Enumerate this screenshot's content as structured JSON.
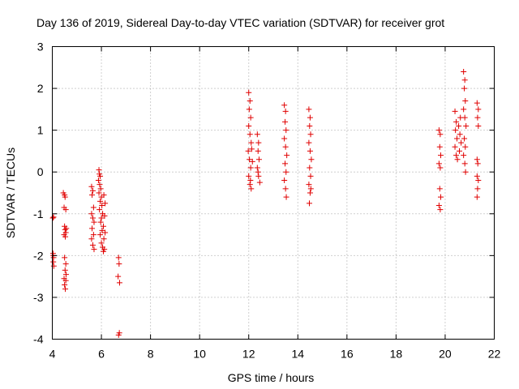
{
  "chart_data": {
    "type": "scatter",
    "title": "Day 136 of 2019, Sidereal Day-to-day VTEC variation (SDTVAR) for receiver grot",
    "xlabel": "GPS time / hours",
    "ylabel": "SDTVAR / TECUs",
    "xlim": [
      4,
      22
    ],
    "ylim": [
      -4,
      3
    ],
    "xticks": [
      4,
      6,
      8,
      10,
      12,
      14,
      16,
      18,
      20,
      22
    ],
    "yticks": [
      -4,
      -3,
      -2,
      -1,
      0,
      1,
      2,
      3
    ],
    "xtick_labels": [
      "4",
      "6",
      "8",
      "10",
      "12",
      "14",
      "16",
      "18",
      "20",
      "22"
    ],
    "ytick_labels": [
      "-4",
      "-3",
      "-2",
      "-1",
      "0",
      "1",
      "2",
      "3"
    ],
    "grid": true,
    "marker": "+",
    "marker_color": "#e00000",
    "series": [
      {
        "name": "SDTVAR",
        "points": [
          [
            4.02,
            -1.1
          ],
          [
            4.05,
            -1.08
          ],
          [
            4.03,
            -1.95
          ],
          [
            4.05,
            -2.05
          ],
          [
            4.04,
            -2.15
          ],
          [
            4.06,
            -2.25
          ],
          [
            4.04,
            -2.0
          ],
          [
            4.45,
            -0.5
          ],
          [
            4.5,
            -0.55
          ],
          [
            4.52,
            -0.6
          ],
          [
            4.48,
            -0.85
          ],
          [
            4.55,
            -0.9
          ],
          [
            4.5,
            -1.3
          ],
          [
            4.52,
            -1.38
          ],
          [
            4.55,
            -1.45
          ],
          [
            4.48,
            -1.5
          ],
          [
            4.53,
            -1.55
          ],
          [
            4.57,
            -1.35
          ],
          [
            4.5,
            -2.05
          ],
          [
            4.55,
            -2.2
          ],
          [
            4.52,
            -2.35
          ],
          [
            4.48,
            -2.55
          ],
          [
            4.55,
            -2.6
          ],
          [
            4.5,
            -2.7
          ],
          [
            4.53,
            -2.8
          ],
          [
            4.56,
            -2.45
          ],
          [
            5.6,
            -0.35
          ],
          [
            5.65,
            -0.45
          ],
          [
            5.62,
            -0.55
          ],
          [
            5.68,
            -0.85
          ],
          [
            5.6,
            -1.0
          ],
          [
            5.65,
            -1.1
          ],
          [
            5.7,
            -1.2
          ],
          [
            5.62,
            -1.35
          ],
          [
            5.68,
            -1.5
          ],
          [
            5.6,
            -1.6
          ],
          [
            5.65,
            -1.75
          ],
          [
            5.7,
            -1.85
          ],
          [
            5.9,
            0.05
          ],
          [
            5.92,
            -0.05
          ],
          [
            5.95,
            -0.1
          ],
          [
            5.88,
            -0.2
          ],
          [
            5.93,
            -0.3
          ],
          [
            5.97,
            -0.4
          ],
          [
            5.9,
            -0.5
          ],
          [
            6.0,
            -0.6
          ],
          [
            5.95,
            -0.7
          ],
          [
            6.02,
            -0.8
          ],
          [
            5.92,
            -0.9
          ],
          [
            6.05,
            -1.0
          ],
          [
            6.0,
            -1.1
          ],
          [
            5.97,
            -1.2
          ],
          [
            6.08,
            -1.3
          ],
          [
            6.03,
            -1.4
          ],
          [
            5.95,
            -1.5
          ],
          [
            6.1,
            -1.6
          ],
          [
            6.0,
            -1.7
          ],
          [
            6.05,
            -1.8
          ],
          [
            6.12,
            -1.85
          ],
          [
            6.08,
            -1.9
          ],
          [
            6.15,
            -1.45
          ],
          [
            6.13,
            -1.05
          ],
          [
            6.1,
            -0.55
          ],
          [
            6.15,
            -0.75
          ],
          [
            6.7,
            -2.05
          ],
          [
            6.72,
            -2.2
          ],
          [
            6.68,
            -2.5
          ],
          [
            6.74,
            -2.65
          ],
          [
            6.7,
            -3.9
          ],
          [
            6.73,
            -3.85
          ],
          [
            12.0,
            1.9
          ],
          [
            12.05,
            1.7
          ],
          [
            12.02,
            1.5
          ],
          [
            12.08,
            1.3
          ],
          [
            12.0,
            1.1
          ],
          [
            12.05,
            0.9
          ],
          [
            12.1,
            0.7
          ],
          [
            11.98,
            0.5
          ],
          [
            12.03,
            0.3
          ],
          [
            12.08,
            0.1
          ],
          [
            12.0,
            -0.1
          ],
          [
            12.05,
            -0.3
          ],
          [
            12.1,
            -0.4
          ],
          [
            12.12,
            0.55
          ],
          [
            12.15,
            0.25
          ],
          [
            12.07,
            -0.2
          ],
          [
            12.35,
            0.9
          ],
          [
            12.4,
            0.7
          ],
          [
            12.38,
            0.5
          ],
          [
            12.42,
            0.3
          ],
          [
            12.35,
            0.1
          ],
          [
            12.4,
            -0.1
          ],
          [
            12.45,
            -0.25
          ],
          [
            12.38,
            0.0
          ],
          [
            13.45,
            1.6
          ],
          [
            13.5,
            1.45
          ],
          [
            13.48,
            1.2
          ],
          [
            13.52,
            1.0
          ],
          [
            13.45,
            0.8
          ],
          [
            13.5,
            0.6
          ],
          [
            13.55,
            0.4
          ],
          [
            13.48,
            0.2
          ],
          [
            13.52,
            0.0
          ],
          [
            13.45,
            -0.2
          ],
          [
            13.5,
            -0.4
          ],
          [
            13.53,
            -0.6
          ],
          [
            14.45,
            1.5
          ],
          [
            14.5,
            1.3
          ],
          [
            14.48,
            1.1
          ],
          [
            14.52,
            0.9
          ],
          [
            14.45,
            0.7
          ],
          [
            14.5,
            0.5
          ],
          [
            14.55,
            0.3
          ],
          [
            14.48,
            0.1
          ],
          [
            14.52,
            -0.1
          ],
          [
            14.45,
            -0.3
          ],
          [
            14.5,
            -0.5
          ],
          [
            14.47,
            -0.75
          ],
          [
            14.53,
            -0.4
          ],
          [
            19.75,
            1.0
          ],
          [
            19.8,
            0.9
          ],
          [
            19.78,
            0.6
          ],
          [
            19.82,
            0.4
          ],
          [
            19.75,
            0.2
          ],
          [
            19.8,
            0.1
          ],
          [
            19.78,
            -0.4
          ],
          [
            19.82,
            -0.6
          ],
          [
            19.75,
            -0.8
          ],
          [
            19.8,
            -0.9
          ],
          [
            20.4,
            1.45
          ],
          [
            20.45,
            1.2
          ],
          [
            20.42,
            1.0
          ],
          [
            20.48,
            0.8
          ],
          [
            20.4,
            0.6
          ],
          [
            20.45,
            0.4
          ],
          [
            20.5,
            0.3
          ],
          [
            20.55,
            1.1
          ],
          [
            20.6,
            0.9
          ],
          [
            20.65,
            0.7
          ],
          [
            20.58,
            0.5
          ],
          [
            20.62,
            1.3
          ],
          [
            20.75,
            2.4
          ],
          [
            20.8,
            2.2
          ],
          [
            20.78,
            2.0
          ],
          [
            20.82,
            1.7
          ],
          [
            20.75,
            1.5
          ],
          [
            20.8,
            1.3
          ],
          [
            20.85,
            1.1
          ],
          [
            20.78,
            0.8
          ],
          [
            20.82,
            0.6
          ],
          [
            20.75,
            0.4
          ],
          [
            20.8,
            0.2
          ],
          [
            20.83,
            0.0
          ],
          [
            21.3,
            1.65
          ],
          [
            21.35,
            1.5
          ],
          [
            21.32,
            1.3
          ],
          [
            21.35,
            1.1
          ],
          [
            21.3,
            0.3
          ],
          [
            21.33,
            0.2
          ],
          [
            21.3,
            -0.1
          ],
          [
            21.35,
            -0.2
          ],
          [
            21.32,
            -0.4
          ],
          [
            21.3,
            -0.6
          ]
        ]
      }
    ]
  }
}
